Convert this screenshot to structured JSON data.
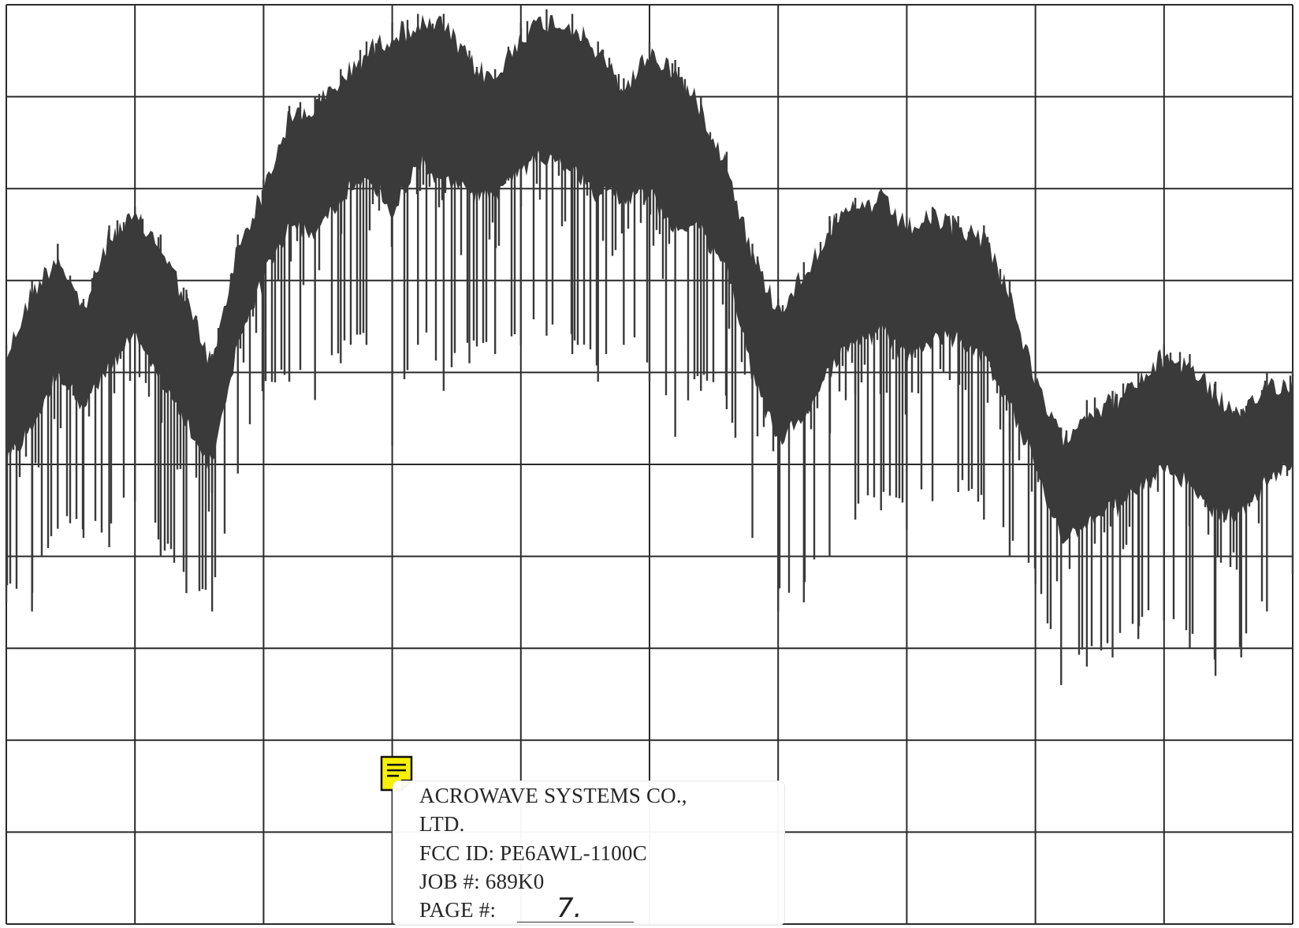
{
  "chart_data": {
    "type": "line",
    "title": "",
    "xlabel": "",
    "ylabel": "",
    "grid": true,
    "grid_divisions": {
      "x": 10,
      "y": 10
    },
    "xlim": [
      0,
      10
    ],
    "ylim": [
      0,
      10
    ],
    "line_color": "#3a3a3a",
    "series": [
      {
        "x": [
          0.0,
          0.2,
          0.4,
          0.6,
          0.8,
          1.0,
          1.2,
          1.4,
          1.6,
          1.8,
          2.0,
          2.2,
          2.4,
          2.6,
          2.8,
          3.0,
          3.2,
          3.4,
          3.6,
          3.8,
          4.0,
          4.2,
          4.4,
          4.6,
          4.8,
          5.0,
          5.2,
          5.4,
          5.6,
          5.8,
          6.0,
          6.2,
          6.4,
          6.6,
          6.8,
          7.0,
          7.2,
          7.4,
          7.6,
          7.8,
          8.0,
          8.2,
          8.4,
          8.6,
          8.8,
          9.0,
          9.2,
          9.4,
          9.6,
          9.8,
          10.0
        ],
        "upper": [
          6.3,
          7.0,
          7.4,
          6.8,
          7.6,
          7.8,
          7.5,
          6.9,
          6.2,
          7.5,
          8.1,
          8.9,
          9.0,
          9.3,
          9.6,
          9.8,
          9.9,
          9.9,
          9.5,
          9.3,
          9.8,
          9.95,
          9.9,
          9.6,
          9.2,
          9.6,
          9.4,
          9.0,
          8.4,
          7.4,
          6.8,
          7.2,
          7.7,
          7.9,
          8.0,
          7.7,
          7.8,
          7.7,
          7.6,
          7.0,
          6.0,
          5.4,
          5.7,
          5.8,
          6.0,
          6.3,
          6.2,
          5.9,
          5.6,
          6.0,
          6.0
        ],
        "lower": [
          3.5,
          3.4,
          4.3,
          4.2,
          4.1,
          4.6,
          4.0,
          3.6,
          3.4,
          4.9,
          5.7,
          5.9,
          5.7,
          6.1,
          6.3,
          5.2,
          6.3,
          5.8,
          6.1,
          6.2,
          6.3,
          6.4,
          6.2,
          5.9,
          6.3,
          5.9,
          5.3,
          5.8,
          5.6,
          4.2,
          3.4,
          3.5,
          4.0,
          4.4,
          4.5,
          4.3,
          4.6,
          4.7,
          4.4,
          4.0,
          3.7,
          2.6,
          2.8,
          2.9,
          3.1,
          3.3,
          3.0,
          2.7,
          2.9,
          3.4,
          3.8
        ]
      }
    ]
  },
  "label": {
    "company_line1": "ACROWAVE SYSTEMS CO.,",
    "company_line2": "LTD.",
    "fcc_id": "FCC ID: PE6AWL-1100C",
    "job": "JOB #: 689K0",
    "page_label": "PAGE #:",
    "page_number": "7."
  },
  "note_icon": "sticky-note-icon",
  "note_icon_color": "#f7f000"
}
